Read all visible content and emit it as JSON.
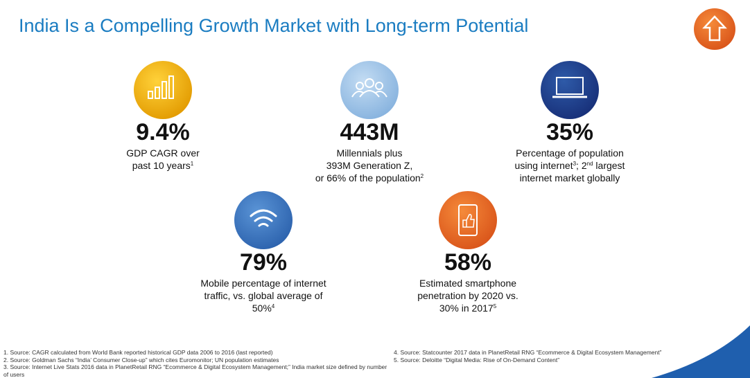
{
  "title": "India Is a Compelling Growth Market with Long-term Potential",
  "stats": [
    {
      "value": "9.4%",
      "lines": [
        [
          {
            "t": "GDP CAGR over"
          }
        ],
        [
          {
            "t": "past 10 years"
          },
          {
            "sup": "1"
          }
        ]
      ]
    },
    {
      "value": "443M",
      "lines": [
        [
          {
            "t": "Millennials plus"
          }
        ],
        [
          {
            "t": "393M Generation Z,"
          }
        ],
        [
          {
            "t": "or 66% of the population"
          },
          {
            "sup": "2"
          }
        ]
      ]
    },
    {
      "value": "35%",
      "lines": [
        [
          {
            "t": "Percentage of population"
          }
        ],
        [
          {
            "t": "using internet"
          },
          {
            "sup": "3"
          },
          {
            "t": "; 2"
          },
          {
            "sup": "nd"
          },
          {
            "t": " largest"
          }
        ],
        [
          {
            "t": "internet market globally"
          }
        ]
      ]
    },
    {
      "value": "79%",
      "lines": [
        [
          {
            "t": "Mobile percentage of internet"
          }
        ],
        [
          {
            "t": "traffic, vs. global average of"
          }
        ],
        [
          {
            "t": "50%"
          },
          {
            "sup": "4"
          }
        ]
      ]
    },
    {
      "value": "58%",
      "lines": [
        [
          {
            "t": "Estimated smartphone"
          }
        ],
        [
          {
            "t": "penetration by 2020 vs."
          }
        ],
        [
          {
            "t": "30% in 2017"
          },
          {
            "sup": "5"
          }
        ]
      ]
    }
  ],
  "footnotes_left": [
    "1. Source: CAGR calculated from World Bank reported historical GDP data 2006 to 2016 (last reported)",
    "2. Source: Goldman Sachs “India’ Consumer Close-up” which cites Euromonitor; UN population estimates",
    "3. Source: Internet Live Stats 2016 data in PlanetRetail RNG “Ecommerce & Digital Ecosystem Management;” India market size defined by number of users"
  ],
  "footnotes_right": [
    "4. Source: Statcounter 2017 data in PlanetRetail RNG “Ecommerce & Digital Ecosystem Management”",
    "5. Source: Deloitte “Digital Media: Rise of On-Demand Content”"
  ]
}
